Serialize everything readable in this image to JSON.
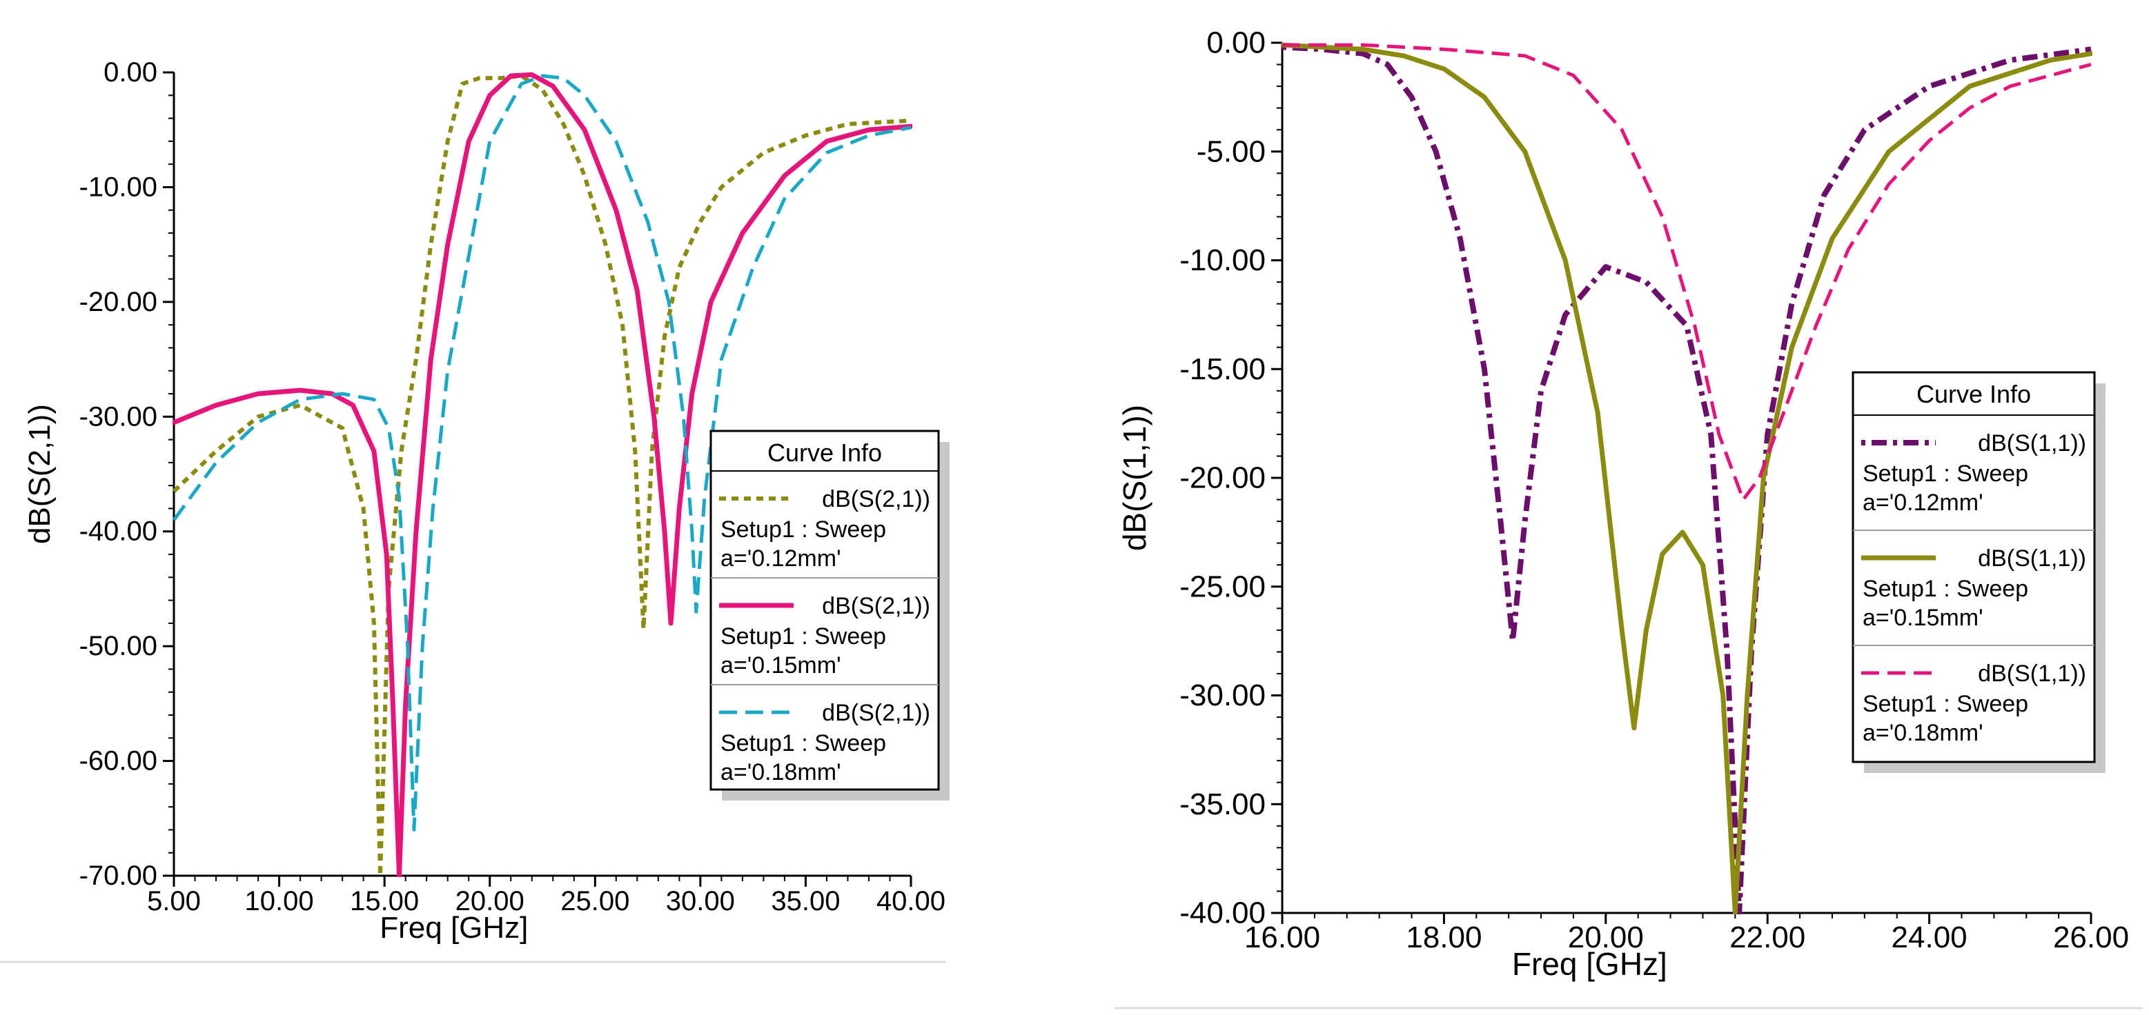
{
  "chart_data": [
    {
      "type": "line",
      "xlabel": "Freq [GHz]",
      "ylabel": "dB(S(2,1))",
      "xlim": [
        5,
        40
      ],
      "ylim": [
        -70,
        0
      ],
      "x_ticks": [
        "5.00",
        "10.00",
        "15.00",
        "20.00",
        "25.00",
        "30.00",
        "35.00",
        "40.00"
      ],
      "y_ticks": [
        "0.00",
        "-10.00",
        "-20.00",
        "-30.00",
        "-40.00",
        "-50.00",
        "-60.00",
        "-70.00"
      ],
      "legend_title": "Curve Info",
      "legend_position": "center-right",
      "series": [
        {
          "name": "dB(S(2,1))",
          "setup": "Setup1 : Sweep",
          "param": "a='0.12mm'",
          "color": "#8B8B0F",
          "style": "dotted",
          "points": [
            [
              5,
              -36.5
            ],
            [
              7,
              -33
            ],
            [
              9,
              -30
            ],
            [
              11,
              -29
            ],
            [
              13,
              -31
            ],
            [
              14,
              -38
            ],
            [
              14.5,
              -48
            ],
            [
              14.8,
              -70
            ],
            [
              15.2,
              -45
            ],
            [
              15.8,
              -33
            ],
            [
              16.5,
              -25
            ],
            [
              17.2,
              -15
            ],
            [
              18,
              -6
            ],
            [
              18.7,
              -1
            ],
            [
              19.5,
              -0.5
            ],
            [
              20.5,
              -0.5
            ],
            [
              21.5,
              -0.3
            ],
            [
              22.5,
              -1.5
            ],
            [
              23.5,
              -4.5
            ],
            [
              24.5,
              -9
            ],
            [
              25.5,
              -15
            ],
            [
              26.3,
              -22
            ],
            [
              26.9,
              -33
            ],
            [
              27.3,
              -48.5
            ],
            [
              27.7,
              -33
            ],
            [
              28.3,
              -23
            ],
            [
              29,
              -17
            ],
            [
              30,
              -13
            ],
            [
              31,
              -10
            ],
            [
              33,
              -7
            ],
            [
              35,
              -5.5
            ],
            [
              37,
              -4.5
            ],
            [
              40,
              -4.2
            ]
          ]
        },
        {
          "name": "dB(S(2,1))",
          "setup": "Setup1 : Sweep",
          "param": "a='0.15mm'",
          "color": "#E5157A",
          "style": "solid",
          "points": [
            [
              5,
              -30.5
            ],
            [
              7,
              -29
            ],
            [
              9,
              -28
            ],
            [
              11,
              -27.7
            ],
            [
              12.5,
              -28
            ],
            [
              13.5,
              -29
            ],
            [
              14.5,
              -33
            ],
            [
              15.1,
              -42
            ],
            [
              15.4,
              -55
            ],
            [
              15.7,
              -70
            ],
            [
              16,
              -55
            ],
            [
              16.5,
              -40
            ],
            [
              17.2,
              -25
            ],
            [
              18,
              -15
            ],
            [
              19,
              -6
            ],
            [
              20,
              -2
            ],
            [
              21,
              -0.3
            ],
            [
              22,
              -0.2
            ],
            [
              23,
              -1.2
            ],
            [
              24.5,
              -5
            ],
            [
              26,
              -12
            ],
            [
              27,
              -19
            ],
            [
              27.8,
              -30
            ],
            [
              28.3,
              -40
            ],
            [
              28.6,
              -48
            ],
            [
              29,
              -38
            ],
            [
              29.6,
              -28
            ],
            [
              30.5,
              -20
            ],
            [
              32,
              -14
            ],
            [
              34,
              -9
            ],
            [
              36,
              -6
            ],
            [
              38,
              -5
            ],
            [
              40,
              -4.7
            ]
          ]
        },
        {
          "name": "dB(S(2,1))",
          "setup": "Setup1 : Sweep",
          "param": "a='0.18mm'",
          "color": "#1BA8C6",
          "style": "dashed",
          "points": [
            [
              5,
              -39
            ],
            [
              7,
              -34
            ],
            [
              9,
              -30.5
            ],
            [
              11,
              -28.5
            ],
            [
              13,
              -28
            ],
            [
              14.5,
              -28.5
            ],
            [
              15.2,
              -31
            ],
            [
              15.7,
              -37
            ],
            [
              16.1,
              -50
            ],
            [
              16.4,
              -66
            ],
            [
              16.8,
              -50
            ],
            [
              17.3,
              -38
            ],
            [
              18,
              -26
            ],
            [
              19,
              -16
            ],
            [
              20,
              -6
            ],
            [
              21.5,
              -1
            ],
            [
              22.5,
              -0.3
            ],
            [
              23.5,
              -0.5
            ],
            [
              24.5,
              -2
            ],
            [
              26,
              -6
            ],
            [
              27.5,
              -13
            ],
            [
              28.5,
              -20
            ],
            [
              29.2,
              -30
            ],
            [
              29.6,
              -40
            ],
            [
              29.8,
              -47
            ],
            [
              30.2,
              -37
            ],
            [
              31,
              -25
            ],
            [
              32.5,
              -17
            ],
            [
              34,
              -11
            ],
            [
              36,
              -7
            ],
            [
              38,
              -5.5
            ],
            [
              40,
              -4.8
            ]
          ]
        }
      ]
    },
    {
      "type": "line",
      "xlabel": "Freq [GHz]",
      "ylabel": "dB(S(1,1))",
      "xlim": [
        16,
        26
      ],
      "ylim": [
        -40,
        0
      ],
      "x_ticks": [
        "16.00",
        "18.00",
        "20.00",
        "22.00",
        "24.00",
        "26.00"
      ],
      "y_ticks": [
        "0.00",
        "-5.00",
        "-10.00",
        "-15.00",
        "-20.00",
        "-25.00",
        "-30.00",
        "-35.00",
        "-40.00"
      ],
      "legend_title": "Curve Info",
      "legend_position": "center-right",
      "series": [
        {
          "name": "dB(S(1,1))",
          "setup": "Setup1 : Sweep",
          "param": "a='0.12mm'",
          "color": "#6B0F6B",
          "style": "dashdot",
          "points": [
            [
              16,
              -0.2
            ],
            [
              16.5,
              -0.3
            ],
            [
              17,
              -0.5
            ],
            [
              17.3,
              -1
            ],
            [
              17.6,
              -2.5
            ],
            [
              17.9,
              -5
            ],
            [
              18.2,
              -9
            ],
            [
              18.5,
              -15
            ],
            [
              18.7,
              -22
            ],
            [
              18.85,
              -27.5
            ],
            [
              19,
              -22
            ],
            [
              19.2,
              -16
            ],
            [
              19.5,
              -12.5
            ],
            [
              20,
              -10.3
            ],
            [
              20.5,
              -11
            ],
            [
              21,
              -13
            ],
            [
              21.3,
              -18
            ],
            [
              21.5,
              -28
            ],
            [
              21.65,
              -40
            ],
            [
              21.8,
              -28
            ],
            [
              22,
              -18
            ],
            [
              22.3,
              -12
            ],
            [
              22.7,
              -7
            ],
            [
              23.2,
              -4
            ],
            [
              24,
              -2
            ],
            [
              25,
              -0.8
            ],
            [
              26,
              -0.3
            ]
          ]
        },
        {
          "name": "dB(S(1,1))",
          "setup": "Setup1 : Sweep",
          "param": "a='0.15mm'",
          "color": "#8B8B0F",
          "style": "solid",
          "points": [
            [
              16,
              -0.1
            ],
            [
              17,
              -0.3
            ],
            [
              17.5,
              -0.6
            ],
            [
              18,
              -1.2
            ],
            [
              18.5,
              -2.5
            ],
            [
              19,
              -5
            ],
            [
              19.5,
              -10
            ],
            [
              19.9,
              -17
            ],
            [
              20.2,
              -27
            ],
            [
              20.35,
              -31.5
            ],
            [
              20.5,
              -27
            ],
            [
              20.7,
              -23.5
            ],
            [
              20.95,
              -22.5
            ],
            [
              21.2,
              -24
            ],
            [
              21.45,
              -30
            ],
            [
              21.6,
              -40
            ],
            [
              21.75,
              -30
            ],
            [
              21.95,
              -20
            ],
            [
              22.3,
              -14
            ],
            [
              22.8,
              -9
            ],
            [
              23.5,
              -5
            ],
            [
              24.5,
              -2
            ],
            [
              25.5,
              -0.8
            ],
            [
              26,
              -0.5
            ]
          ]
        },
        {
          "name": "dB(S(1,1))",
          "setup": "Setup1 : Sweep",
          "param": "a='0.18mm'",
          "color": "#E5157A",
          "style": "dashed",
          "points": [
            [
              16,
              -0.1
            ],
            [
              17,
              -0.1
            ],
            [
              18,
              -0.3
            ],
            [
              19,
              -0.6
            ],
            [
              19.6,
              -1.5
            ],
            [
              20.2,
              -4
            ],
            [
              20.7,
              -8
            ],
            [
              21.1,
              -13
            ],
            [
              21.4,
              -18
            ],
            [
              21.7,
              -21
            ],
            [
              21.9,
              -20
            ],
            [
              22.2,
              -17
            ],
            [
              22.6,
              -13
            ],
            [
              23,
              -9.5
            ],
            [
              23.5,
              -6.5
            ],
            [
              24,
              -4.5
            ],
            [
              24.5,
              -3
            ],
            [
              25,
              -2
            ],
            [
              26,
              -1
            ]
          ]
        }
      ]
    }
  ]
}
